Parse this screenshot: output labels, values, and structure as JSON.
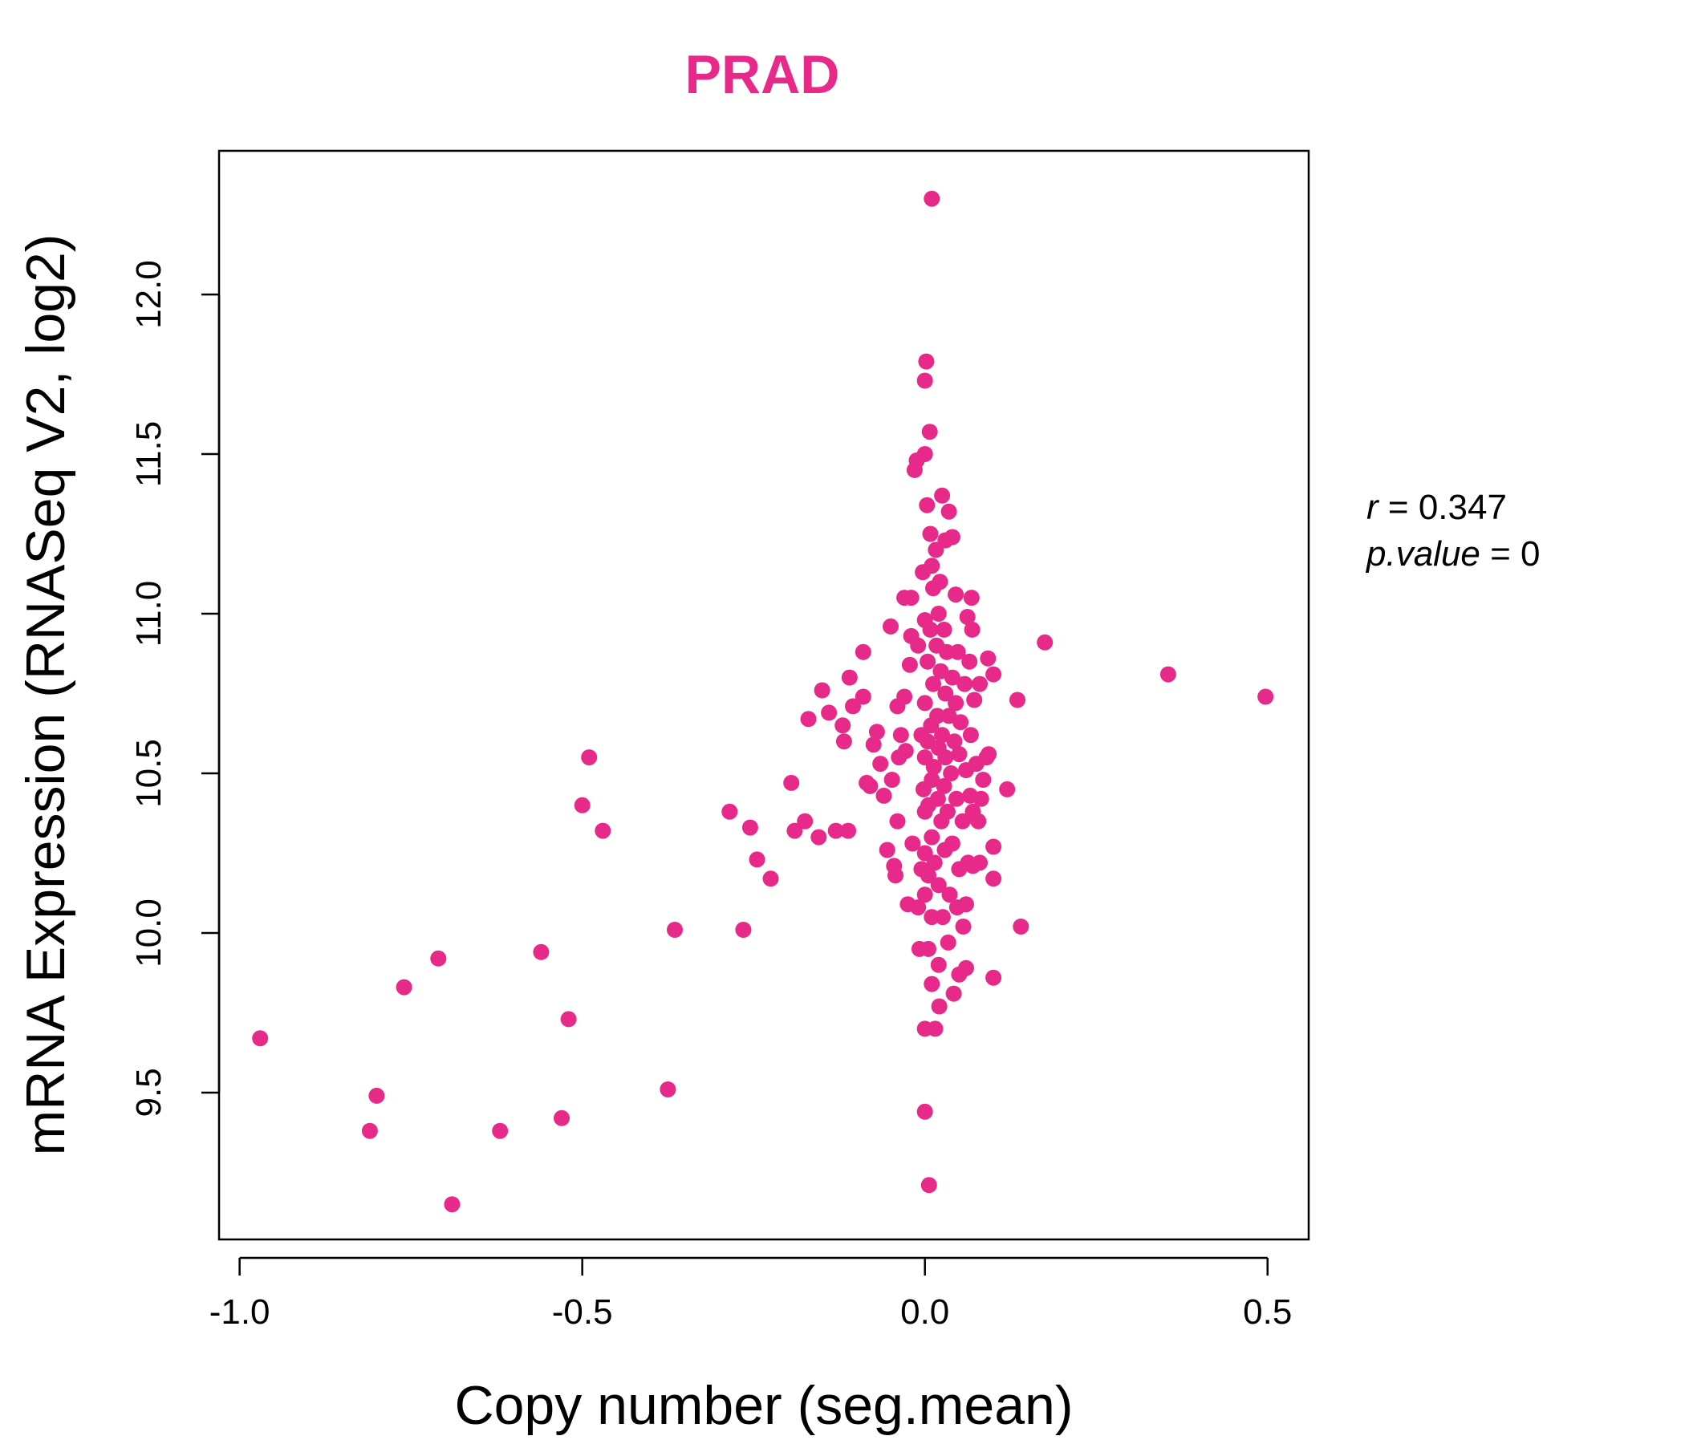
{
  "chart_data": {
    "type": "scatter",
    "title": "PRAD",
    "xlabel": "Copy number (seg.mean)",
    "ylabel": "mRNA Expression (RNASeq V2, log2)",
    "xlim": [
      -1.03,
      0.56
    ],
    "ylim": [
      9.04,
      12.45
    ],
    "xticks": [
      -1.0,
      -0.5,
      0.0,
      0.5
    ],
    "xtick_labels": [
      "-1.0",
      "-0.5",
      "0.0",
      "0.5"
    ],
    "yticks": [
      9.5,
      10.0,
      10.5,
      11.0,
      11.5,
      12.0
    ],
    "ytick_labels": [
      "9.5",
      "10.0",
      "10.5",
      "11.0",
      "11.5",
      "12.0"
    ],
    "grid": false,
    "legend": "none",
    "colors": {
      "points": "#e7298a",
      "title": "#e7298a",
      "axis": "#000000"
    },
    "stats": {
      "r_label": "r",
      "r_value": "0.347",
      "p_label": "p.value",
      "p_value": "0"
    },
    "series": [
      {
        "points": [
          [
            -0.97,
            9.67
          ],
          [
            -0.81,
            9.38
          ],
          [
            -0.8,
            9.49
          ],
          [
            -0.76,
            9.83
          ],
          [
            -0.71,
            9.92
          ],
          [
            -0.69,
            9.15
          ],
          [
            -0.62,
            9.38
          ],
          [
            -0.56,
            9.94
          ],
          [
            -0.53,
            9.42
          ],
          [
            -0.52,
            9.73
          ],
          [
            -0.5,
            10.4
          ],
          [
            -0.49,
            10.55
          ],
          [
            -0.47,
            10.32
          ],
          [
            -0.375,
            9.51
          ],
          [
            -0.365,
            10.01
          ],
          [
            -0.285,
            10.38
          ],
          [
            -0.265,
            10.01
          ],
          [
            -0.255,
            10.33
          ],
          [
            -0.245,
            10.23
          ],
          [
            -0.225,
            10.17
          ],
          [
            -0.195,
            10.47
          ],
          [
            -0.19,
            10.32
          ],
          [
            -0.175,
            10.35
          ],
          [
            -0.17,
            10.67
          ],
          [
            -0.155,
            10.3
          ],
          [
            -0.15,
            10.76
          ],
          [
            -0.14,
            10.69
          ],
          [
            -0.13,
            10.32
          ],
          [
            -0.12,
            10.65
          ],
          [
            -0.118,
            10.6
          ],
          [
            -0.112,
            10.32
          ],
          [
            -0.11,
            10.8
          ],
          [
            -0.105,
            10.71
          ],
          [
            -0.09,
            10.88
          ],
          [
            -0.09,
            10.74
          ],
          [
            -0.085,
            10.47
          ],
          [
            -0.08,
            10.46
          ],
          [
            -0.075,
            10.59
          ],
          [
            -0.07,
            10.63
          ],
          [
            -0.065,
            10.53
          ],
          [
            -0.06,
            10.43
          ],
          [
            -0.055,
            10.26
          ],
          [
            -0.05,
            10.96
          ],
          [
            -0.048,
            10.48
          ],
          [
            -0.045,
            10.21
          ],
          [
            -0.043,
            10.18
          ],
          [
            -0.04,
            10.71
          ],
          [
            -0.04,
            10.35
          ],
          [
            -0.038,
            10.55
          ],
          [
            -0.035,
            10.62
          ],
          [
            -0.03,
            11.05
          ],
          [
            -0.03,
            10.74
          ],
          [
            -0.028,
            10.57
          ],
          [
            -0.025,
            10.09
          ],
          [
            -0.022,
            10.84
          ],
          [
            -0.02,
            11.05
          ],
          [
            -0.02,
            10.93
          ],
          [
            -0.018,
            10.28
          ],
          [
            -0.015,
            11.45
          ],
          [
            -0.012,
            11.48
          ],
          [
            -0.01,
            10.9
          ],
          [
            -0.01,
            10.08
          ],
          [
            -0.008,
            9.95
          ],
          [
            -0.005,
            10.62
          ],
          [
            -0.005,
            10.2
          ],
          [
            -0.003,
            11.13
          ],
          [
            -0.002,
            10.45
          ],
          [
            0.0,
            11.73
          ],
          [
            0.0,
            11.5
          ],
          [
            0.0,
            10.98
          ],
          [
            0.0,
            10.72
          ],
          [
            0.0,
            10.55
          ],
          [
            0.0,
            10.38
          ],
          [
            0.0,
            10.25
          ],
          [
            0.0,
            10.12
          ],
          [
            0.0,
            9.7
          ],
          [
            0.0,
            9.44
          ],
          [
            0.002,
            11.79
          ],
          [
            0.003,
            11.34
          ],
          [
            0.004,
            10.85
          ],
          [
            0.004,
            10.6
          ],
          [
            0.005,
            10.4
          ],
          [
            0.005,
            10.18
          ],
          [
            0.005,
            9.95
          ],
          [
            0.006,
            9.21
          ],
          [
            0.007,
            11.57
          ],
          [
            0.008,
            11.25
          ],
          [
            0.008,
            10.95
          ],
          [
            0.009,
            10.65
          ],
          [
            0.01,
            12.3
          ],
          [
            0.01,
            11.15
          ],
          [
            0.01,
            10.48
          ],
          [
            0.01,
            10.3
          ],
          [
            0.01,
            10.05
          ],
          [
            0.01,
            9.84
          ],
          [
            0.012,
            11.08
          ],
          [
            0.012,
            10.78
          ],
          [
            0.013,
            10.52
          ],
          [
            0.014,
            10.22
          ],
          [
            0.015,
            9.7
          ],
          [
            0.016,
            11.2
          ],
          [
            0.017,
            10.9
          ],
          [
            0.018,
            10.68
          ],
          [
            0.019,
            10.42
          ],
          [
            0.02,
            11.0
          ],
          [
            0.02,
            10.58
          ],
          [
            0.02,
            10.15
          ],
          [
            0.02,
            9.9
          ],
          [
            0.021,
            9.77
          ],
          [
            0.022,
            11.1
          ],
          [
            0.023,
            10.82
          ],
          [
            0.024,
            10.35
          ],
          [
            0.025,
            11.37
          ],
          [
            0.025,
            10.62
          ],
          [
            0.026,
            10.05
          ],
          [
            0.028,
            10.95
          ],
          [
            0.028,
            10.46
          ],
          [
            0.029,
            10.26
          ],
          [
            0.03,
            11.23
          ],
          [
            0.03,
            10.75
          ],
          [
            0.03,
            10.55
          ],
          [
            0.032,
            10.88
          ],
          [
            0.033,
            10.38
          ],
          [
            0.034,
            9.97
          ],
          [
            0.035,
            11.32
          ],
          [
            0.035,
            10.68
          ],
          [
            0.036,
            10.12
          ],
          [
            0.038,
            10.5
          ],
          [
            0.04,
            11.24
          ],
          [
            0.04,
            10.8
          ],
          [
            0.04,
            10.28
          ],
          [
            0.042,
            9.81
          ],
          [
            0.043,
            10.6
          ],
          [
            0.045,
            11.06
          ],
          [
            0.045,
            10.72
          ],
          [
            0.046,
            10.42
          ],
          [
            0.047,
            10.08
          ],
          [
            0.048,
            10.88
          ],
          [
            0.05,
            10.56
          ],
          [
            0.05,
            10.2
          ],
          [
            0.05,
            9.87
          ],
          [
            0.052,
            10.66
          ],
          [
            0.055,
            10.35
          ],
          [
            0.056,
            10.02
          ],
          [
            0.058,
            10.78
          ],
          [
            0.06,
            10.51
          ],
          [
            0.06,
            10.09
          ],
          [
            0.06,
            9.89
          ],
          [
            0.062,
            10.99
          ],
          [
            0.063,
            10.22
          ],
          [
            0.065,
            10.85
          ],
          [
            0.066,
            10.43
          ],
          [
            0.067,
            10.62
          ],
          [
            0.068,
            11.05
          ],
          [
            0.069,
            10.95
          ],
          [
            0.07,
            10.38
          ],
          [
            0.07,
            10.21
          ],
          [
            0.072,
            10.73
          ],
          [
            0.075,
            10.53
          ],
          [
            0.078,
            10.35
          ],
          [
            0.08,
            10.78
          ],
          [
            0.08,
            10.22
          ],
          [
            0.082,
            10.42
          ],
          [
            0.085,
            10.48
          ],
          [
            0.09,
            10.55
          ],
          [
            0.092,
            10.86
          ],
          [
            0.093,
            10.56
          ],
          [
            0.1,
            10.81
          ],
          [
            0.1,
            10.27
          ],
          [
            0.1,
            10.17
          ],
          [
            0.1,
            9.86
          ],
          [
            0.12,
            10.45
          ],
          [
            0.135,
            10.73
          ],
          [
            0.14,
            10.02
          ],
          [
            0.175,
            10.91
          ],
          [
            0.355,
            10.81
          ],
          [
            0.497,
            10.74
          ]
        ]
      }
    ]
  }
}
